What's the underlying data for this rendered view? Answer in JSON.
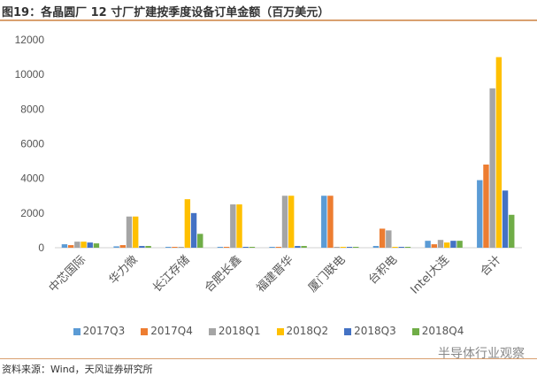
{
  "title": "图19：各晶圆厂 12 寸厂扩建按季度设备订单金额（百万美元）",
  "source": "资料来源：Wind，天风证券研究所",
  "watermark": "半导体行业观察",
  "chart_data": {
    "type": "bar",
    "title": "各晶圆厂 12 寸厂扩建按季度设备订单金额（百万美元）",
    "xlabel": "",
    "ylabel": "",
    "ylim": [
      0,
      12000
    ],
    "yticks": [
      0,
      2000,
      4000,
      6000,
      8000,
      10000,
      12000
    ],
    "grid": false,
    "legend_position": "bottom",
    "categories": [
      "中芯国际",
      "华力微",
      "长江存储",
      "合肥长鑫",
      "福建晋华",
      "厦门联电",
      "台积电",
      "Intel大连",
      "合计"
    ],
    "series": [
      {
        "name": "2017Q3",
        "color": "#5b9bd5",
        "values": [
          200,
          80,
          0,
          0,
          0,
          3000,
          100,
          400,
          3900
        ]
      },
      {
        "name": "2017Q4",
        "color": "#ed7d31",
        "values": [
          150,
          150,
          0,
          0,
          0,
          3000,
          1100,
          200,
          4800
        ]
      },
      {
        "name": "2018Q1",
        "color": "#a5a5a5",
        "values": [
          350,
          1800,
          0,
          2500,
          3000,
          30,
          1000,
          450,
          9200
        ]
      },
      {
        "name": "2018Q2",
        "color": "#ffc000",
        "values": [
          350,
          1800,
          2800,
          2500,
          3000,
          30,
          50,
          300,
          11000
        ]
      },
      {
        "name": "2018Q3",
        "color": "#4472c4",
        "values": [
          300,
          100,
          2000,
          50,
          100,
          30,
          50,
          400,
          3300
        ]
      },
      {
        "name": "2018Q4",
        "color": "#70ad47",
        "values": [
          250,
          100,
          800,
          50,
          100,
          30,
          50,
          400,
          1900
        ]
      }
    ]
  }
}
